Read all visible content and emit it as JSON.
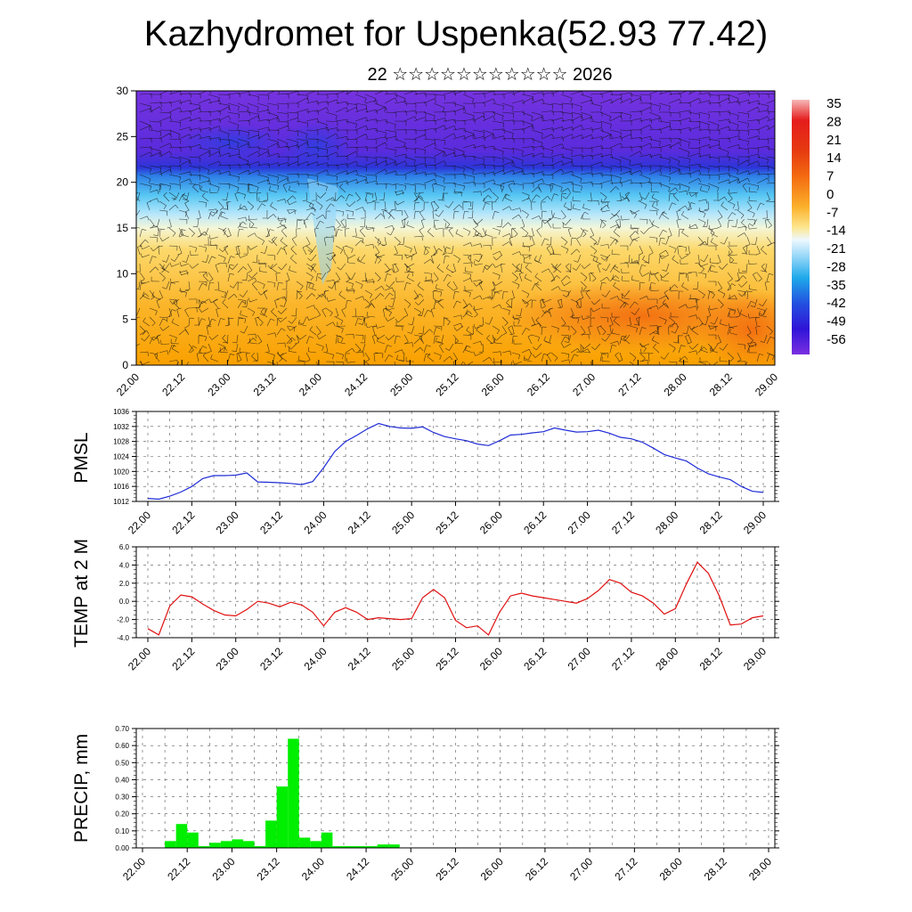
{
  "title": "Kazhydromet for Uspenka(52.93 77.42)",
  "subtitle": "22 ☆☆☆☆☆☆☆☆☆☆☆ 2026",
  "time_labels": [
    "22.00",
    "22.12",
    "23.00",
    "23.12",
    "24.00",
    "24.12",
    "25.00",
    "25.12",
    "26.00",
    "26.12",
    "27.00",
    "27.12",
    "28.00",
    "28.12",
    "29.00"
  ],
  "colors": {
    "pressure_line": "#1f2bd6",
    "temp_line": "#e01010",
    "precip_bar": "#00ee00"
  },
  "chart_data": [
    {
      "type": "heatmap",
      "name": "cross-section",
      "title": "",
      "ylim": [
        0,
        30
      ],
      "yticks": [
        "0",
        "5",
        "10",
        "15",
        "20",
        "25",
        "30"
      ],
      "colorbar": {
        "levels": [
          -56,
          -49,
          -42,
          -35,
          -28,
          -21,
          -14,
          -7,
          0,
          7,
          14,
          21,
          28,
          35
        ],
        "labels": [
          "35",
          "28",
          "21",
          "14",
          "7",
          "0",
          "-7",
          "-14",
          "-21",
          "-28",
          "-35",
          "-42",
          "-49",
          "-56"
        ]
      },
      "description_values": "temperature field with wind barbs; warm (0..14) near surface, cold (-56) above ~21"
    },
    {
      "type": "line",
      "name": "pmsl",
      "ylabel": "PMSL",
      "ylim": [
        1012,
        1036
      ],
      "yticks": [
        "1036",
        "1032",
        "1028",
        "1024",
        "1020",
        "1016",
        "1012"
      ],
      "y_tick_values": [
        1036,
        1032,
        1028,
        1024,
        1020,
        1016,
        1012
      ],
      "x": [
        0,
        0.25,
        0.5,
        0.75,
        1.0,
        1.25,
        1.5,
        1.75,
        2.0,
        2.25,
        2.5,
        2.75,
        3.0,
        3.25,
        3.5,
        3.75,
        4.0,
        4.25,
        4.5,
        4.75,
        5.0,
        5.25,
        5.5,
        5.75,
        6.0,
        6.25,
        6.5,
        6.75,
        7.0,
        7.25,
        7.5,
        7.75,
        8.0,
        8.25,
        8.5,
        8.75,
        9.0,
        9.25,
        9.5,
        9.75,
        10.0,
        10.25,
        10.5,
        10.75,
        11.0,
        11.25,
        11.5,
        11.75,
        12.0,
        12.25,
        12.5,
        12.75,
        13.0,
        13.25,
        13.5,
        13.75,
        14.0
      ],
      "values": [
        1012.8,
        1012.6,
        1013.4,
        1014.5,
        1016.0,
        1018.1,
        1018.9,
        1018.9,
        1019.0,
        1019.6,
        1017.2,
        1017.1,
        1017.0,
        1016.8,
        1016.5,
        1017.3,
        1021.0,
        1025.3,
        1028.0,
        1029.6,
        1031.4,
        1032.8,
        1032.0,
        1031.6,
        1031.5,
        1031.9,
        1030.4,
        1029.3,
        1028.7,
        1028.2,
        1027.3,
        1026.9,
        1028.2,
        1029.7,
        1029.9,
        1030.3,
        1030.6,
        1031.6,
        1031.0,
        1030.5,
        1030.6,
        1031.0,
        1030.2,
        1029.1,
        1028.7,
        1027.8,
        1026.2,
        1024.5,
        1023.6,
        1022.8,
        1020.9,
        1019.4,
        1018.5,
        1017.8,
        1016.0,
        1014.7,
        1014.4
      ]
    },
    {
      "type": "line",
      "name": "temp",
      "ylabel": "TEMP at 2 M",
      "ylim": [
        -4.0,
        6.0
      ],
      "yticks": [
        "6.0",
        "4.0",
        "2.0",
        "0.0",
        "-2.0",
        "-4.0"
      ],
      "y_tick_values": [
        6,
        4,
        2,
        0,
        -2,
        -4
      ],
      "x": [
        0,
        0.25,
        0.5,
        0.75,
        1.0,
        1.25,
        1.5,
        1.75,
        2.0,
        2.25,
        2.5,
        2.75,
        3.0,
        3.25,
        3.5,
        3.75,
        4.0,
        4.25,
        4.5,
        4.75,
        5.0,
        5.25,
        5.5,
        5.75,
        6.0,
        6.25,
        6.5,
        6.75,
        7.0,
        7.25,
        7.5,
        7.75,
        8.0,
        8.25,
        8.5,
        8.75,
        9.0,
        9.25,
        9.5,
        9.75,
        10.0,
        10.25,
        10.5,
        10.75,
        11.0,
        11.25,
        11.5,
        11.75,
        12.0,
        12.25,
        12.5,
        12.75,
        13.0,
        13.25,
        13.5,
        13.75,
        14.0
      ],
      "values": [
        -3.0,
        -3.7,
        -0.5,
        0.7,
        0.5,
        -0.3,
        -1.0,
        -1.5,
        -1.6,
        -0.9,
        0.0,
        -0.2,
        -0.6,
        -0.1,
        -0.4,
        -1.2,
        -2.7,
        -1.2,
        -0.7,
        -1.2,
        -2.0,
        -1.8,
        -1.9,
        -2.0,
        -1.9,
        0.4,
        1.3,
        0.4,
        -2.1,
        -2.9,
        -2.7,
        -3.7,
        -1.2,
        0.6,
        0.9,
        0.6,
        0.4,
        0.2,
        0.0,
        -0.2,
        0.3,
        1.2,
        2.4,
        2.0,
        1.0,
        0.6,
        -0.2,
        -1.4,
        -0.8,
        1.9,
        4.3,
        3.1,
        0.6,
        -2.6,
        -2.5,
        -1.8,
        -1.6
      ]
    },
    {
      "type": "bar",
      "name": "precip",
      "ylabel": "PRECIP, mm",
      "ylim": [
        0,
        0.7
      ],
      "yticks": [
        "0.70",
        "0.60",
        "0.50",
        "0.40",
        "0.30",
        "0.20",
        "0.10",
        "0.00"
      ],
      "y_tick_values": [
        0.7,
        0.6,
        0.5,
        0.4,
        0.3,
        0.2,
        0.1,
        0.0
      ],
      "x": [
        0.75,
        1.0,
        1.25,
        1.5,
        1.75,
        2.0,
        2.25,
        2.5,
        2.75,
        3.0,
        3.25,
        3.5,
        3.75,
        4.0,
        4.25,
        4.5,
        4.75,
        5.0,
        5.25,
        5.5,
        5.75,
        6.0,
        6.25
      ],
      "values": [
        0.04,
        0.14,
        0.09,
        0.01,
        0.03,
        0.04,
        0.05,
        0.04,
        0.01,
        0.16,
        0.36,
        0.64,
        0.06,
        0.04,
        0.09,
        0.01,
        0.01,
        0.01,
        0.01,
        0.02,
        0.02,
        0.0,
        0.0
      ]
    }
  ]
}
